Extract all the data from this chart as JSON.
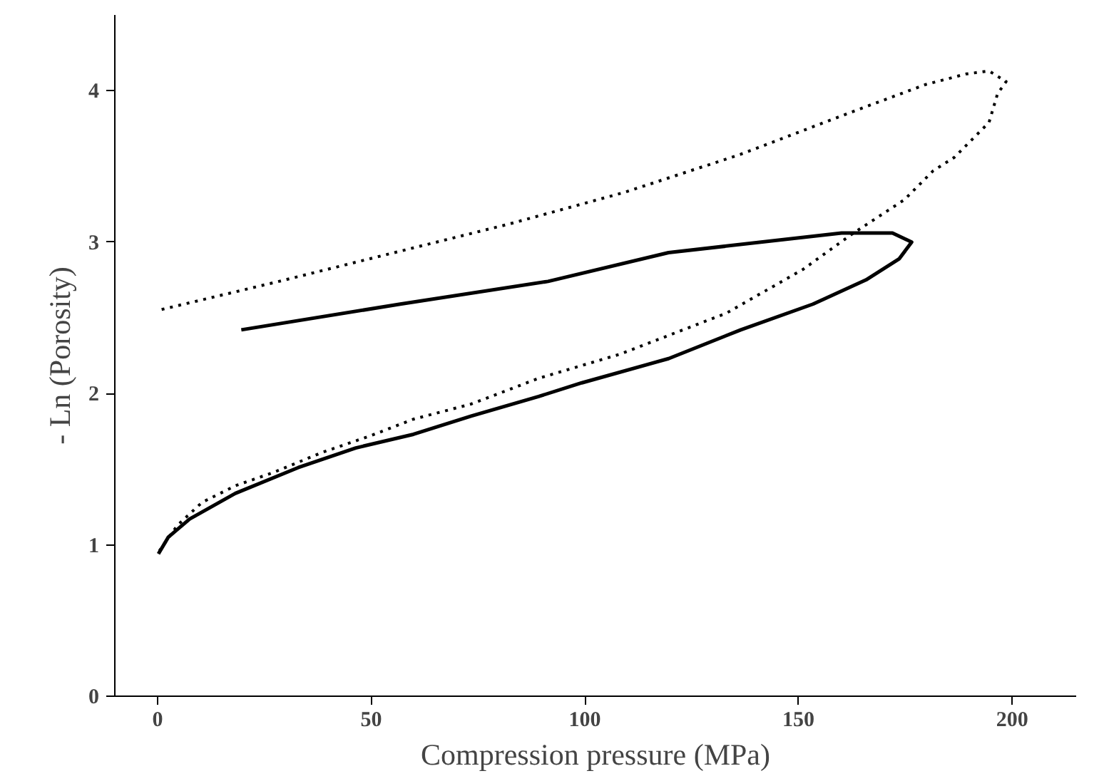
{
  "chart_data": {
    "type": "line",
    "xlabel": "Compression pressure (MPa)",
    "ylabel": "- Ln (Porosity)",
    "xlim": [
      -10,
      215
    ],
    "ylim": [
      0,
      4.5
    ],
    "xticks": [
      0,
      50,
      100,
      150,
      200
    ],
    "yticks": [
      0,
      1,
      2,
      3,
      4
    ],
    "grid": false,
    "marker": "none",
    "series": [
      {
        "color": "#000000",
        "line_style": "dotted",
        "x": [
          0.4,
          4.7,
          10.4,
          18.2,
          27.3,
          38.5,
          49.8,
          59.9,
          73.4,
          89.2,
          108.3,
          133.1,
          151.1,
          162.4,
          174.8,
          181.5,
          186.5,
          194.6,
          196.6,
          198.6,
          194.6,
          189.2,
          179.7,
          163.5,
          136.5,
          109.5,
          82.4,
          55.4,
          28.4,
          0.3
        ],
        "values": [
          0.96,
          1.13,
          1.28,
          1.39,
          1.48,
          1.61,
          1.72,
          1.83,
          1.93,
          2.1,
          2.26,
          2.53,
          2.82,
          3.05,
          3.28,
          3.47,
          3.56,
          3.79,
          3.98,
          4.06,
          4.13,
          4.11,
          4.04,
          3.87,
          3.58,
          3.33,
          3.12,
          2.93,
          2.74,
          2.55
        ]
      },
      {
        "color": "#000000",
        "line_style": "solid",
        "x": [
          0.2,
          2.5,
          7.5,
          18.2,
          32.9,
          46.4,
          59.9,
          73.4,
          89.2,
          99.3,
          119.6,
          136.5,
          153.4,
          165.8,
          173.6,
          176.5,
          172,
          160.1,
          119.6,
          91.4,
          56.8,
          19.6
        ],
        "values": [
          0.94,
          1.05,
          1.17,
          1.34,
          1.51,
          1.64,
          1.73,
          1.85,
          1.98,
          2.07,
          2.23,
          2.42,
          2.59,
          2.75,
          2.89,
          3.0,
          3.06,
          3.06,
          2.93,
          2.74,
          2.59,
          2.42
        ]
      }
    ]
  }
}
